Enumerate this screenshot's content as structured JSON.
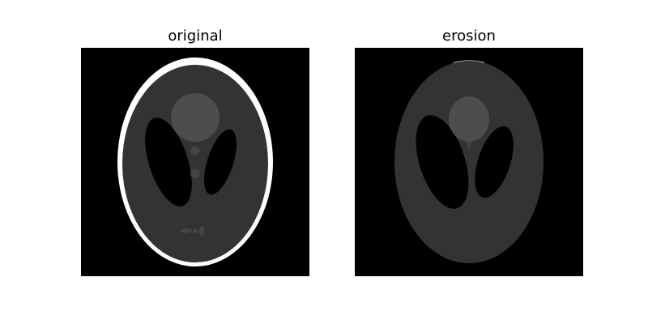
{
  "panels": [
    {
      "title": "original"
    },
    {
      "title": "erosion"
    }
  ],
  "colors": {
    "background": "#000000",
    "skull": "#ffffff",
    "brain": "#333333",
    "ventricles": "#000000",
    "lesion_large": "#4d4d4d",
    "lesion_small": "#444444"
  }
}
